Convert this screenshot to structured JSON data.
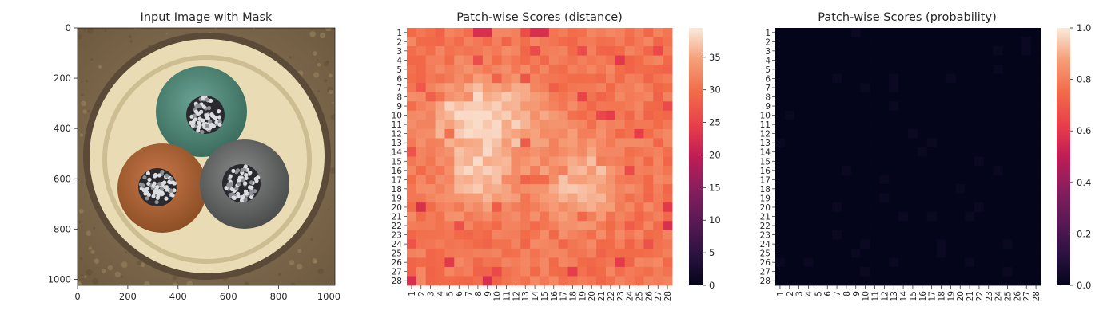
{
  "chart_data": [
    {
      "type": "image",
      "title": "Input Image with Mask",
      "xticks": [
        "0",
        "200",
        "400",
        "600",
        "800",
        "1000"
      ],
      "xtick_values": [
        0,
        200,
        400,
        600,
        800,
        1000
      ],
      "yticks": [
        "0",
        "200",
        "400",
        "600",
        "800",
        "1000"
      ],
      "ytick_values": [
        0,
        200,
        400,
        600,
        800,
        1000
      ],
      "xlim": [
        0,
        1024
      ],
      "ylim": [
        1024,
        0
      ]
    },
    {
      "type": "heatmap",
      "title": "Patch-wise Scores (distance)",
      "rows": 28,
      "cols": 28,
      "row_labels": [
        "1",
        "2",
        "3",
        "4",
        "5",
        "6",
        "7",
        "8",
        "9",
        "10",
        "11",
        "12",
        "13",
        "14",
        "15",
        "16",
        "17",
        "18",
        "19",
        "20",
        "21",
        "22",
        "23",
        "24",
        "25",
        "26",
        "27",
        "28"
      ],
      "col_labels": [
        "1",
        "2",
        "3",
        "4",
        "5",
        "6",
        "7",
        "8",
        "9",
        "10",
        "11",
        "12",
        "13",
        "14",
        "15",
        "16",
        "17",
        "18",
        "19",
        "20",
        "21",
        "22",
        "23",
        "24",
        "25",
        "26",
        "27",
        "28"
      ],
      "colorbar_ticks": [
        "0",
        "5",
        "10",
        "15",
        "20",
        "25",
        "30",
        "35"
      ],
      "colorbar_tick_values": [
        0,
        5,
        10,
        15,
        20,
        25,
        30,
        35
      ],
      "colorbar_range": [
        0,
        39.5
      ],
      "value_range_estimate": [
        22,
        39
      ]
    },
    {
      "type": "heatmap",
      "title": "Patch-wise Scores (probability)",
      "rows": 28,
      "cols": 28,
      "row_labels": [
        "1",
        "2",
        "3",
        "4",
        "5",
        "6",
        "7",
        "8",
        "9",
        "10",
        "11",
        "12",
        "13",
        "14",
        "15",
        "16",
        "17",
        "18",
        "19",
        "20",
        "21",
        "22",
        "23",
        "24",
        "25",
        "26",
        "27",
        "28"
      ],
      "col_labels": [
        "1",
        "2",
        "3",
        "4",
        "5",
        "6",
        "7",
        "8",
        "9",
        "10",
        "11",
        "12",
        "13",
        "14",
        "15",
        "16",
        "17",
        "18",
        "19",
        "20",
        "21",
        "22",
        "23",
        "24",
        "25",
        "26",
        "27",
        "28"
      ],
      "colorbar_ticks": [
        "0.0",
        "0.2",
        "0.4",
        "0.6",
        "0.8",
        "1.0"
      ],
      "colorbar_tick_values": [
        0,
        0.2,
        0.4,
        0.6,
        0.8,
        1.0
      ],
      "colorbar_range": [
        0,
        1
      ],
      "value_range_estimate": [
        0,
        0.03
      ]
    }
  ],
  "colors": {
    "background": "#ffffff",
    "text": "#262626",
    "image_background": "#7d6648",
    "cable_sheath": "#e6d6ad",
    "cable_green": "#4f8a78",
    "cable_brown": "#b56a36",
    "cable_gray": "#6c6f6e"
  }
}
